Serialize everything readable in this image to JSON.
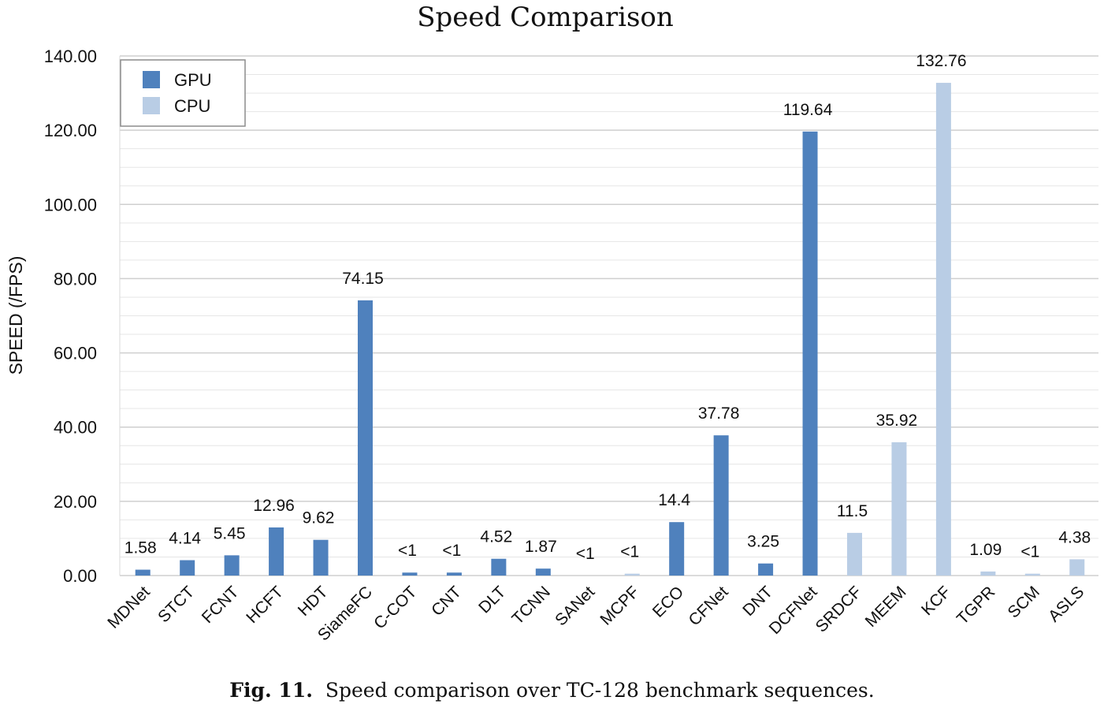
{
  "chart_data": {
    "type": "bar",
    "title": "Speed Comparison",
    "ylabel": "SPEED (/FPS)",
    "xlabel": "",
    "ylim": [
      0,
      140
    ],
    "yticks": [
      "0.00",
      "20.00",
      "40.00",
      "60.00",
      "80.00",
      "100.00",
      "120.00",
      "140.00"
    ],
    "grid": true,
    "legend_position": "top-left",
    "legend": [
      {
        "name": "GPU",
        "color": "#4f81bd"
      },
      {
        "name": "CPU",
        "color": "#b9cde5"
      }
    ],
    "categories": [
      "MDNet",
      "STCT",
      "FCNT",
      "HCFT",
      "HDT",
      "SiameFC",
      "C-COT",
      "CNT",
      "DLT",
      "TCNN",
      "SANet",
      "MCPF",
      "ECO",
      "CFNet",
      "DNT",
      "DCFNet",
      "SRDCF",
      "MEEM",
      "KCF",
      "TGPR",
      "SCM",
      "ASLS"
    ],
    "values": [
      1.58,
      4.14,
      5.45,
      12.96,
      9.62,
      74.15,
      0.8,
      0.8,
      4.52,
      1.87,
      0.0,
      0.5,
      14.4,
      37.78,
      3.25,
      119.64,
      11.5,
      35.92,
      132.76,
      1.09,
      0.5,
      4.38
    ],
    "series_membership": [
      "GPU",
      "GPU",
      "GPU",
      "GPU",
      "GPU",
      "GPU",
      "GPU",
      "GPU",
      "GPU",
      "GPU",
      "GPU",
      "CPU",
      "GPU",
      "GPU",
      "GPU",
      "GPU",
      "CPU",
      "CPU",
      "CPU",
      "CPU",
      "CPU",
      "CPU"
    ],
    "data_labels": [
      "1.58",
      "4.14",
      "5.45",
      "12.96",
      "9.62",
      "74.15",
      "<1",
      "<1",
      "4.52",
      "1.87",
      "<1",
      "<1",
      "14.4",
      "37.78",
      "3.25",
      "119.64",
      "11.5",
      "35.92",
      "132.76",
      "1.09",
      "<1",
      "4.38"
    ]
  },
  "caption": {
    "label": "Fig. 11.",
    "text": "Speed comparison over TC-128 benchmark sequences."
  }
}
